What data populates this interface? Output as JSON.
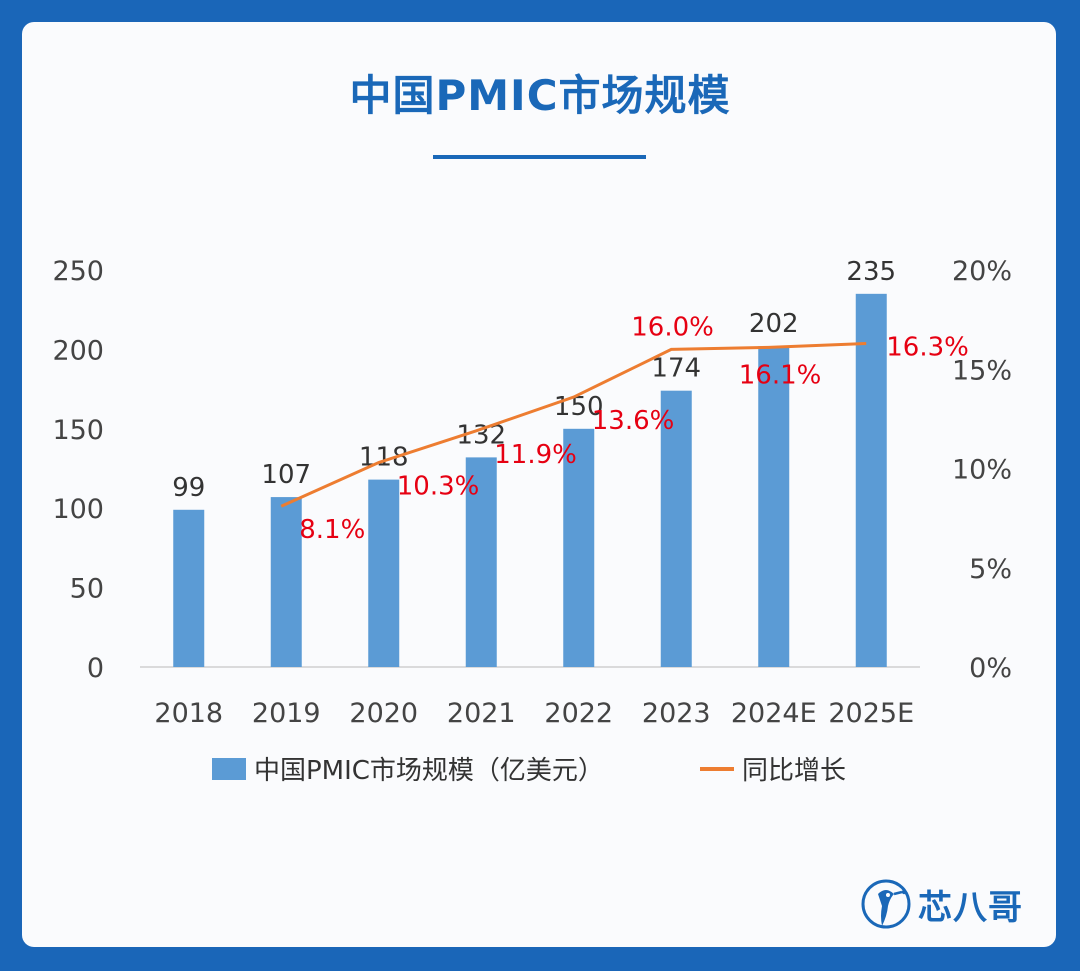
{
  "header": {
    "title": "中国PMIC市场规模"
  },
  "legend": {
    "bar_label": "中国PMIC市场规模（亿美元）",
    "line_label": "同比增长"
  },
  "logo": {
    "text": "芯八哥",
    "icon": "bird-logo-icon"
  },
  "colors": {
    "bar": "#5b9bd5",
    "line": "#ed7d31",
    "growth_label": "#e60012",
    "title": "#1a68b8"
  },
  "chart_data": {
    "type": "bar",
    "title": "中国PMIC市场规模",
    "categories": [
      "2018",
      "2019",
      "2020",
      "2021",
      "2022",
      "2023",
      "2024E",
      "2025E"
    ],
    "series": [
      {
        "name": "中国PMIC市场规模（亿美元）",
        "type": "bar",
        "axis": "left",
        "values": [
          99,
          107,
          118,
          132,
          150,
          174,
          202,
          235
        ],
        "labels": [
          "99",
          "107",
          "118",
          "132",
          "150",
          "174",
          "202",
          "235"
        ]
      },
      {
        "name": "同比增长",
        "type": "line",
        "axis": "right",
        "values": [
          null,
          8.1,
          10.3,
          11.9,
          13.6,
          16.0,
          16.1,
          16.3
        ],
        "labels": [
          "",
          "8.1%",
          "10.3%",
          "11.9%",
          "13.6%",
          "16.0%",
          "16.1%",
          "16.3%"
        ]
      }
    ],
    "y_left": {
      "ylim": [
        0,
        250
      ],
      "ticks": [
        "0",
        "50",
        "100",
        "150",
        "200",
        "250"
      ]
    },
    "y_right": {
      "ylim": [
        0,
        20
      ],
      "ticks": [
        "0%",
        "5%",
        "10%",
        "15%",
        "20%"
      ]
    },
    "grid": false,
    "legend_position": "bottom"
  }
}
